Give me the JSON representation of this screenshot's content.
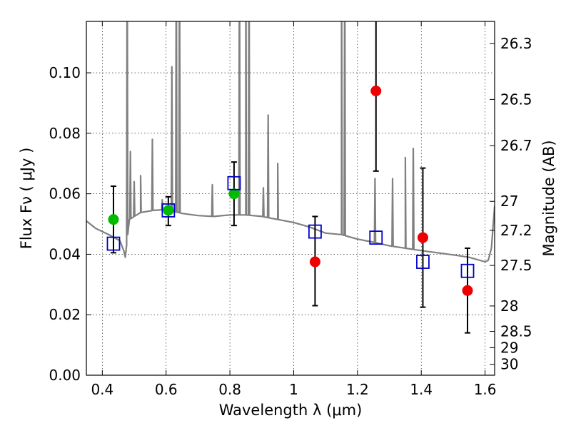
{
  "chart_data": {
    "type": "scatter",
    "xlabel": "Wavelength  λ (μm)",
    "ylabel": "Flux  Fν  ( μJy )",
    "y2label": "Magnitude (AB)",
    "xlim": [
      0.35,
      1.63
    ],
    "ylim": [
      0.0,
      0.117
    ],
    "grid": true,
    "xticks": [
      0.4,
      0.6,
      0.8,
      1.0,
      1.2,
      1.4,
      1.6
    ],
    "xtick_labels": [
      "0.4",
      "0.6",
      "0.8",
      "1",
      "1.2",
      "1.4",
      "1.6"
    ],
    "yticks": [
      0.0,
      0.02,
      0.04,
      0.06,
      0.08,
      0.1
    ],
    "ytick_labels": [
      "0.00",
      "0.02",
      "0.04",
      "0.06",
      "0.08",
      "0.10"
    ],
    "y2ticks": [
      {
        "label": "26.3",
        "flux": 0.1097
      },
      {
        "label": "26.5",
        "flux": 0.0912
      },
      {
        "label": "26.7",
        "flux": 0.0759
      },
      {
        "label": "27",
        "flux": 0.0575
      },
      {
        "label": "27.2",
        "flux": 0.0479
      },
      {
        "label": "27.5",
        "flux": 0.0363
      },
      {
        "label": "28",
        "flux": 0.0229
      },
      {
        "label": "28.5",
        "flux": 0.0145
      },
      {
        "label": "29",
        "flux": 0.0091
      },
      {
        "label": "30",
        "flux": 0.0036
      }
    ],
    "colors": {
      "model": "#808080",
      "green_points": "#00bb00",
      "red_points": "#ee0000",
      "model_boxes": "#0000cc",
      "errorbars": "#000000"
    },
    "model_spectrum": {
      "continuum": [
        [
          0.35,
          0.051
        ],
        [
          0.38,
          0.0485
        ],
        [
          0.42,
          0.0465
        ],
        [
          0.455,
          0.0445
        ],
        [
          0.468,
          0.041
        ],
        [
          0.472,
          0.039
        ],
        [
          0.485,
          0.0515
        ],
        [
          0.52,
          0.0538
        ],
        [
          0.56,
          0.0545
        ],
        [
          0.6,
          0.0548
        ],
        [
          0.65,
          0.0535
        ],
        [
          0.7,
          0.0528
        ],
        [
          0.75,
          0.0525
        ],
        [
          0.8,
          0.053
        ],
        [
          0.85,
          0.053
        ],
        [
          0.9,
          0.0525
        ],
        [
          0.95,
          0.0515
        ],
        [
          1.0,
          0.0505
        ],
        [
          1.05,
          0.049
        ],
        [
          1.1,
          0.047
        ],
        [
          1.15,
          0.0465
        ],
        [
          1.2,
          0.045
        ],
        [
          1.25,
          0.044
        ],
        [
          1.3,
          0.0428
        ],
        [
          1.35,
          0.042
        ],
        [
          1.4,
          0.0412
        ],
        [
          1.45,
          0.0405
        ],
        [
          1.5,
          0.0398
        ],
        [
          1.55,
          0.039
        ],
        [
          1.6,
          0.0375
        ],
        [
          1.61,
          0.038
        ],
        [
          1.62,
          0.042
        ],
        [
          1.63,
          0.056
        ]
      ],
      "lines": [
        [
          0.478,
          0.15
        ],
        [
          0.488,
          0.074
        ],
        [
          0.5,
          0.064
        ],
        [
          0.52,
          0.066
        ],
        [
          0.557,
          0.078
        ],
        [
          0.588,
          0.058
        ],
        [
          0.618,
          0.102
        ],
        [
          0.632,
          0.15
        ],
        [
          0.642,
          0.15
        ],
        [
          0.745,
          0.063
        ],
        [
          0.83,
          0.15
        ],
        [
          0.85,
          0.15
        ],
        [
          0.86,
          0.15
        ],
        [
          0.905,
          0.062
        ],
        [
          0.92,
          0.086
        ],
        [
          0.95,
          0.07
        ],
        [
          1.15,
          0.15
        ],
        [
          1.16,
          0.15
        ],
        [
          1.255,
          0.065
        ],
        [
          1.31,
          0.065
        ],
        [
          1.35,
          0.072
        ],
        [
          1.375,
          0.075
        ]
      ]
    },
    "observed_green": [
      {
        "x": 0.435,
        "y": 0.0515,
        "yerr_low": 0.0405,
        "yerr_high": 0.0625
      },
      {
        "x": 0.607,
        "y": 0.0545,
        "yerr_low": 0.0495,
        "yerr_high": 0.059
      },
      {
        "x": 0.813,
        "y": 0.06,
        "yerr_low": 0.0495,
        "yerr_high": 0.0705
      }
    ],
    "observed_red": [
      {
        "x": 1.067,
        "y": 0.0375,
        "yerr_low": 0.023,
        "yerr_high": 0.0525
      },
      {
        "x": 1.258,
        "y": 0.094,
        "yerr_low": 0.0675,
        "yerr_high": 0.118
      },
      {
        "x": 1.405,
        "y": 0.0455,
        "yerr_low": 0.0225,
        "yerr_high": 0.0685
      },
      {
        "x": 1.545,
        "y": 0.028,
        "yerr_low": 0.014,
        "yerr_high": 0.042
      }
    ],
    "model_photometry": [
      {
        "x": 0.435,
        "y": 0.0435
      },
      {
        "x": 0.607,
        "y": 0.0545
      },
      {
        "x": 0.813,
        "y": 0.0635
      },
      {
        "x": 1.067,
        "y": 0.0475
      },
      {
        "x": 1.258,
        "y": 0.0455
      },
      {
        "x": 1.405,
        "y": 0.0375
      },
      {
        "x": 1.545,
        "y": 0.0345
      }
    ]
  }
}
